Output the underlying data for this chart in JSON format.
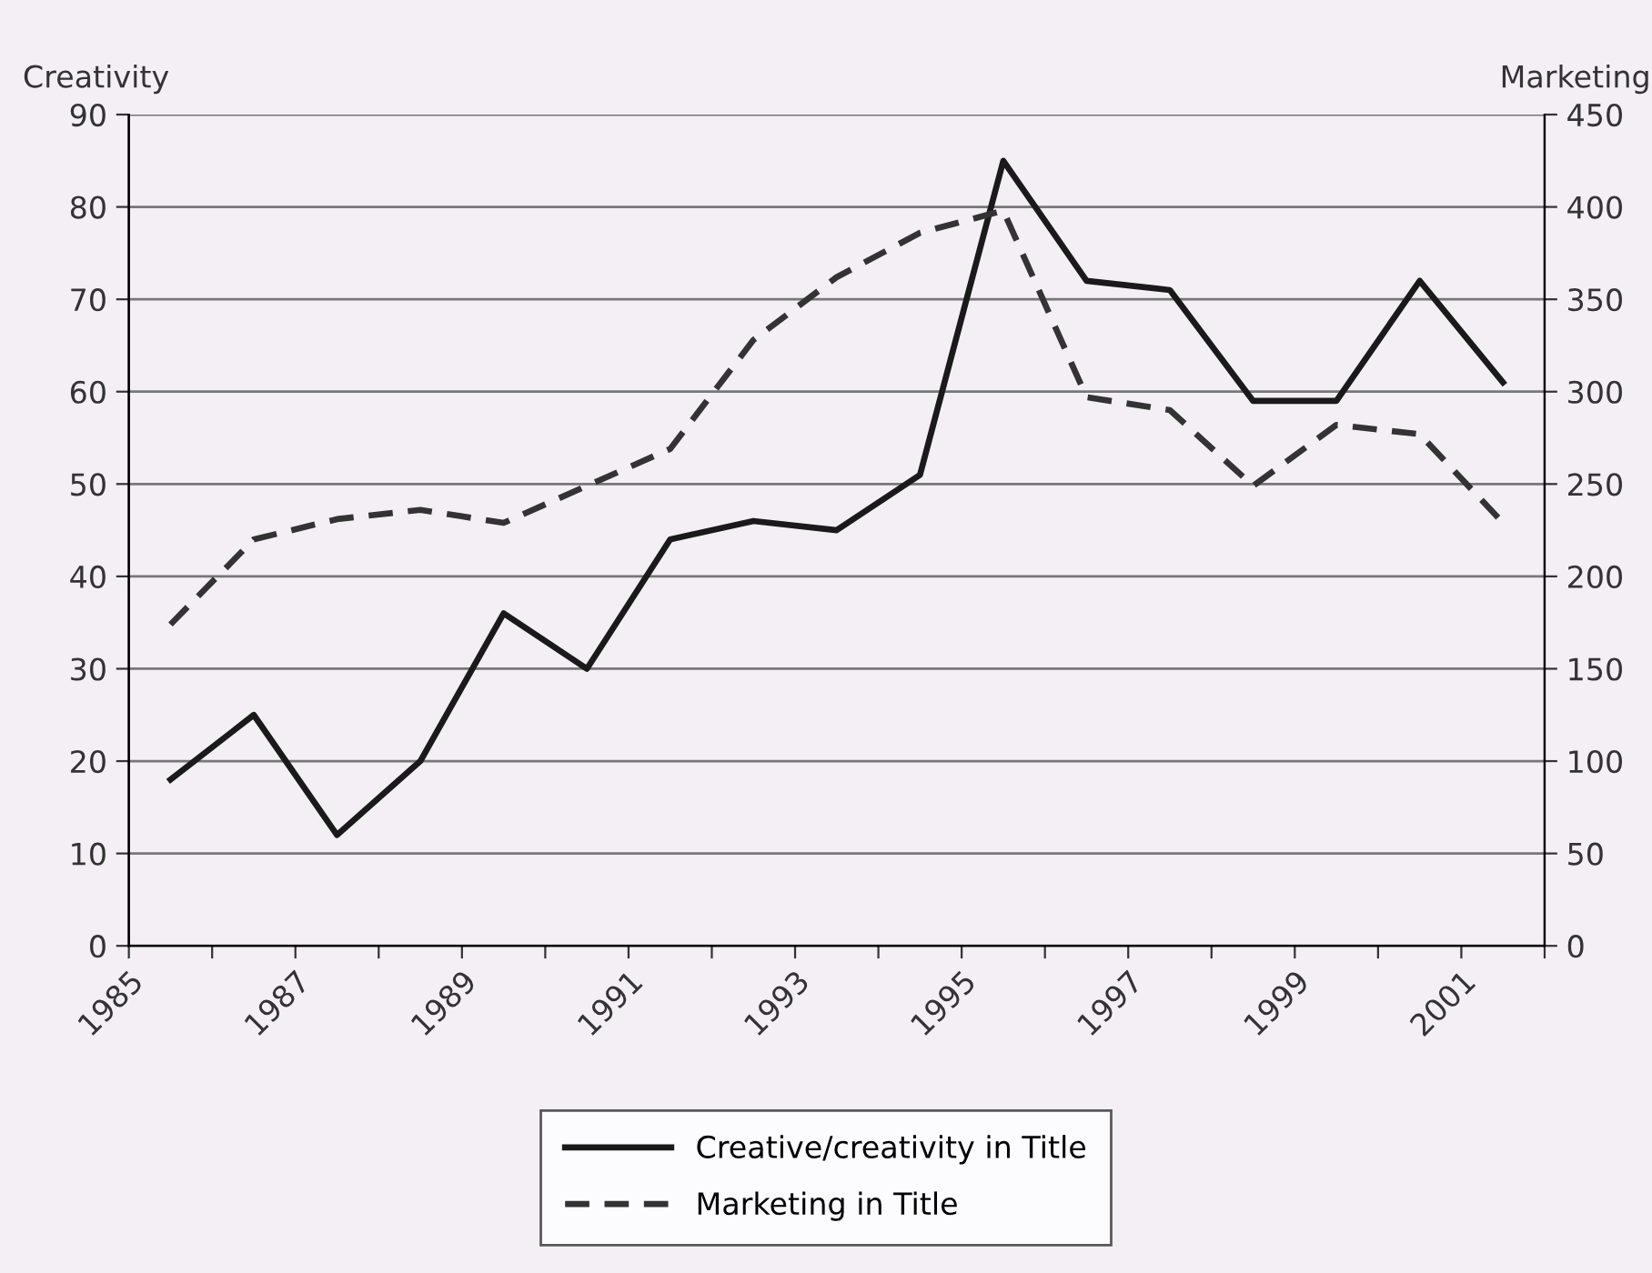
{
  "chart_data": {
    "type": "line",
    "x": [
      1985.5,
      1986.5,
      1987.5,
      1988.5,
      1989.5,
      1990.5,
      1991.5,
      1992.5,
      1993.5,
      1994.5,
      1995.5,
      1996.5,
      1997.5,
      1998.5,
      1999.5,
      2000.5,
      2001.5
    ],
    "series": [
      {
        "name": "Creative/creativity in Title",
        "color": "#1a1a1a",
        "line_style": "solid",
        "values": [
          18,
          25,
          12,
          20,
          36,
          30,
          44,
          46,
          45,
          51,
          85,
          72,
          71,
          59,
          59,
          72,
          61
        ]
      },
      {
        "name": "Marketing in Title",
        "color": "#333333",
        "line_style": "dashed",
        "axis": "y2",
        "values": [
          174,
          220,
          231,
          236,
          229,
          249,
          269,
          328,
          362,
          386,
          398,
          297,
          290,
          249,
          282,
          277,
          229
        ]
      }
    ],
    "ylabel": "Creativity",
    "y2label": "Marketing",
    "xlim": [
      1985,
      2002
    ],
    "xticks": [
      1985,
      {
        "value": 1986,
        "label": null
      },
      1987,
      {
        "value": 1988,
        "label": null
      },
      1989,
      {
        "value": 1990,
        "label": null
      },
      1991,
      {
        "value": 1992,
        "label": null
      },
      1993,
      {
        "value": 1994,
        "label": null
      },
      1995,
      {
        "value": 1996,
        "label": null
      },
      1997,
      {
        "value": 1998,
        "label": null
      },
      1999,
      {
        "value": 2000,
        "label": null
      },
      2001,
      {
        "value": 2002,
        "label": null
      }
    ],
    "ylim": [
      0,
      90
    ],
    "yticks": [
      0,
      10,
      20,
      30,
      40,
      50,
      60,
      70,
      80,
      90
    ],
    "y2lim": [
      0,
      450
    ],
    "y2ticks": [
      0,
      50,
      100,
      150,
      200,
      250,
      300,
      350,
      400,
      450
    ],
    "grid": "y",
    "legend": "bottom",
    "marker": "none"
  }
}
